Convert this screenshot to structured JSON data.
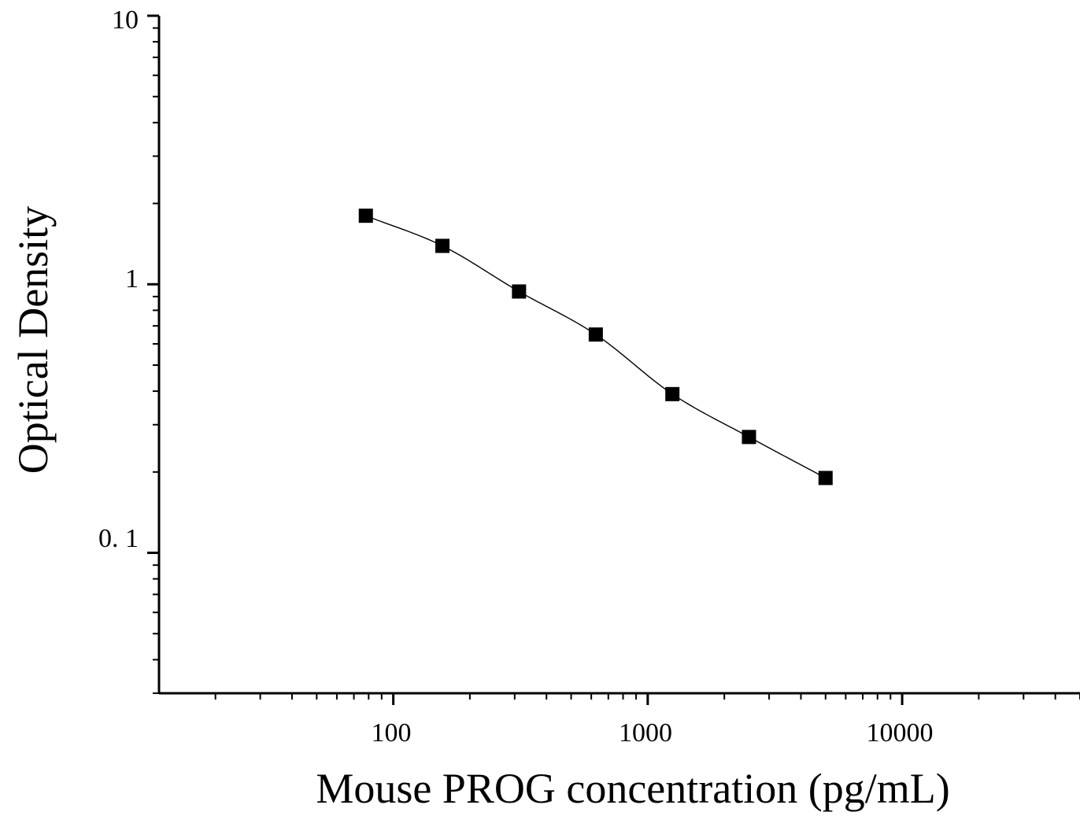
{
  "chart_data": {
    "type": "scatter",
    "title": "",
    "xlabel": "Mouse PROG concentration (pg/mL)",
    "ylabel": "Optical Density",
    "x_scale": "log",
    "y_scale": "log",
    "xlim": [
      12,
      50000
    ],
    "ylim": [
      0.03,
      10
    ],
    "x_tick_labels": [
      "100",
      "1000",
      "10000"
    ],
    "y_tick_labels": [
      "10",
      "1",
      "0. 1"
    ],
    "grid": false,
    "legend": "none",
    "series": [
      {
        "x": [
          78,
          156,
          312,
          625,
          1250,
          2500,
          5000
        ],
        "y": [
          1.8,
          1.39,
          0.94,
          0.65,
          0.39,
          0.27,
          0.19
        ],
        "marker": "square",
        "color": "#000000",
        "fit_line": true
      }
    ]
  }
}
